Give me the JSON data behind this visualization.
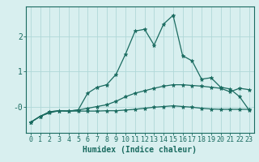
{
  "xlabel": "Humidex (Indice chaleur)",
  "x_values": [
    0,
    1,
    2,
    3,
    4,
    5,
    6,
    7,
    8,
    9,
    10,
    11,
    12,
    13,
    14,
    15,
    16,
    17,
    18,
    19,
    20,
    21,
    22,
    23
  ],
  "series": [
    [
      -0.45,
      -0.28,
      -0.18,
      -0.12,
      -0.13,
      -0.13,
      -0.13,
      -0.13,
      -0.12,
      -0.12,
      -0.1,
      -0.08,
      -0.05,
      -0.02,
      0.0,
      0.02,
      0.0,
      -0.02,
      -0.05,
      -0.07,
      -0.08,
      -0.08,
      -0.08,
      -0.08
    ],
    [
      -0.45,
      -0.28,
      -0.15,
      -0.12,
      -0.13,
      -0.1,
      -0.05,
      0.0,
      0.05,
      0.15,
      0.28,
      0.38,
      0.45,
      0.52,
      0.58,
      0.62,
      0.62,
      0.6,
      0.58,
      0.55,
      0.52,
      0.42,
      0.52,
      0.48
    ],
    [
      -0.45,
      -0.28,
      -0.15,
      -0.12,
      -0.13,
      -0.1,
      0.38,
      0.55,
      0.62,
      0.92,
      1.5,
      2.15,
      2.2,
      1.75,
      2.35,
      2.6,
      1.45,
      1.3,
      0.78,
      0.82,
      0.55,
      0.5,
      0.28,
      -0.1
    ]
  ],
  "line_color": "#1a6b60",
  "marker": "*",
  "bg_color": "#d8efef",
  "grid_color": "#b0d8d8",
  "ytick_labels": [
    "-0",
    "1",
    "2"
  ],
  "ytick_values": [
    0,
    1,
    2
  ],
  "ylim": [
    -0.75,
    2.85
  ],
  "xlim": [
    -0.5,
    23.5
  ],
  "markersize": 3.5,
  "linewidth": 0.9,
  "xlabel_fontsize": 7,
  "tick_fontsize": 6
}
